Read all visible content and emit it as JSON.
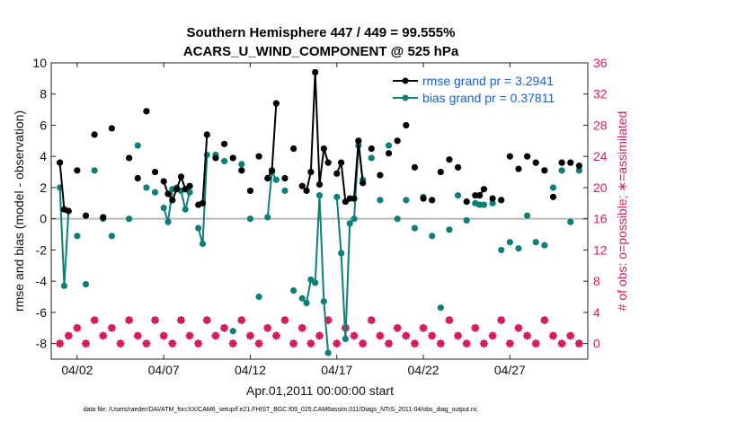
{
  "chart_data": {
    "type": "line",
    "title_line1": "Southern Hemisphere 447 / 449 = 99.555%",
    "title_line2": "ACARS_U_WIND_COMPONENT @ 525 hPa",
    "xlabel": "Apr.01,2011 00:00:00 start",
    "ylabel_left": "rmse and bias (model - observation)",
    "ylabel_right": "# of obs: o=possible; ∗=assimilated",
    "footer": "data file: /Users/raeder/DAI/ATM_forcXX/CAM6_setup/f.e21.FHIST_BGC.f09_025.CAM6assim.011/Diags_NTrS_2011-04/obs_diag_output.nc",
    "ylim_left": [
      -9,
      10
    ],
    "ylim_right": [
      -2,
      36
    ],
    "xlim": [
      0.5,
      31.5
    ],
    "left_ticks": [
      "10",
      "8",
      "6",
      "4",
      "2",
      "0",
      "-2",
      "-4",
      "-6",
      "-8"
    ],
    "right_ticks": [
      "36",
      "32",
      "28",
      "24",
      "20",
      "16",
      "12",
      "8",
      "4",
      "0"
    ],
    "x_ticks": [
      "04/02",
      "04/07",
      "04/12",
      "04/17",
      "04/22",
      "04/27"
    ],
    "x_tick_values": [
      2,
      7,
      12,
      17,
      22,
      27
    ],
    "grid": false,
    "legend_position": "top-right",
    "colors": {
      "rmse": "#000000",
      "bias": "#0d7f7a",
      "obs": "#d81b5f",
      "zero_line": "#b8b8b8",
      "legend_text": "#1560d8"
    },
    "series": [
      {
        "name": "rmse grand pr = 3.2941",
        "x": [
          1.0,
          1.25,
          1.5,
          2.0,
          2.5,
          3.0,
          3.5,
          4.0,
          5.0,
          5.5,
          6.0,
          6.5,
          7.0,
          7.25,
          7.5,
          7.75,
          8.0,
          8.25,
          8.5,
          9.0,
          9.25,
          9.5,
          10.0,
          10.5,
          11.0,
          11.5,
          12.0,
          12.5,
          13.0,
          13.25,
          13.5,
          14.0,
          14.5,
          15.0,
          15.25,
          15.5,
          15.75,
          16.0,
          16.25,
          16.5,
          17.0,
          17.25,
          17.5,
          17.75,
          18.0,
          18.25,
          18.5,
          19.0,
          19.5,
          20.0,
          20.5,
          21.0,
          21.5,
          22.0,
          22.5,
          23.0,
          23.5,
          24.0,
          24.5,
          25.0,
          25.25,
          25.5,
          26.0,
          26.5,
          27.0,
          27.5,
          28.0,
          28.5,
          29.0,
          29.5,
          30.0,
          30.5,
          31.0
        ],
        "y": [
          3.6,
          0.6,
          0.5,
          3.1,
          0.2,
          5.4,
          0.1,
          5.8,
          3.9,
          2.6,
          6.9,
          3.0,
          2.4,
          1.6,
          1.2,
          1.9,
          2.7,
          1.9,
          2.1,
          0.9,
          1.0,
          5.4,
          3.9,
          4.8,
          3.9,
          3.1,
          1.8,
          4.0,
          2.6,
          3.1,
          7.4,
          2.6,
          4.5,
          2.1,
          1.8,
          3.0,
          9.4,
          2.2,
          4.5,
          3.6,
          2.9,
          3.6,
          1.1,
          1.3,
          1.3,
          5.0,
          2.3,
          4.5,
          2.8,
          4.2,
          5.0,
          6.0,
          3.3,
          1.3,
          1.2,
          3.0,
          3.8,
          3.3,
          1.1,
          1.5,
          1.5,
          1.9,
          1.3,
          1.2,
          4.0,
          3.2,
          4.0,
          3.6,
          3.1,
          1.4,
          3.6,
          3.6,
          3.4
        ],
        "marker": "filled-circle"
      },
      {
        "name": "bias grand pr = 0.37811",
        "x": [
          1.0,
          1.25,
          1.5,
          2.0,
          2.5,
          3.0,
          3.5,
          4.0,
          5.0,
          5.5,
          6.0,
          6.5,
          7.0,
          7.25,
          7.5,
          7.75,
          8.0,
          8.25,
          8.5,
          9.0,
          9.25,
          9.5,
          10.0,
          10.5,
          11.0,
          11.5,
          12.0,
          12.5,
          13.0,
          13.25,
          13.5,
          14.0,
          14.5,
          15.0,
          15.25,
          15.5,
          15.75,
          16.0,
          16.25,
          16.5,
          17.0,
          17.25,
          17.5,
          17.75,
          18.0,
          18.25,
          18.5,
          19.0,
          19.5,
          20.0,
          20.5,
          21.0,
          21.5,
          22.0,
          22.5,
          23.0,
          23.5,
          24.0,
          24.5,
          25.0,
          25.25,
          25.5,
          26.0,
          26.5,
          27.0,
          27.5,
          28.0,
          28.5,
          29.0,
          29.5,
          30.0,
          30.5,
          31.0
        ],
        "y": [
          2.0,
          -4.3,
          0.5,
          -1.1,
          -4.2,
          3.1,
          0.0,
          -1.1,
          0.0,
          4.7,
          2.0,
          1.7,
          0.7,
          -0.2,
          1.9,
          2.0,
          1.8,
          0.6,
          1.7,
          -0.6,
          -1.6,
          4.1,
          4.1,
          3.7,
          -7.2,
          3.5,
          0.0,
          -5.0,
          0.1,
          3.0,
          2.5,
          1.8,
          -4.6,
          -5.1,
          -5.4,
          -3.9,
          -4.1,
          1.5,
          -5.3,
          -8.6,
          1.4,
          -2.2,
          -7.7,
          -0.3,
          0.0,
          4.7,
          2.5,
          3.9,
          1.2,
          4.7,
          0.0,
          1.2,
          -0.6,
          1.4,
          -1.1,
          -5.7,
          -0.7,
          1.5,
          -0.1,
          1.0,
          0.9,
          0.9,
          1.0,
          -2.0,
          -1.5,
          -1.9,
          0.2,
          -1.5,
          -1.7,
          2.0,
          3.1,
          -0.2,
          3.1
        ],
        "marker": "filled-circle"
      },
      {
        "name": "observations possible",
        "x": [
          1.0,
          1.5,
          2.0,
          2.5,
          3.0,
          3.5,
          4.0,
          4.5,
          5.0,
          5.5,
          6.0,
          6.5,
          7.0,
          7.5,
          8.0,
          8.5,
          9.0,
          9.5,
          10.0,
          10.5,
          11.0,
          11.5,
          12.0,
          12.5,
          13.0,
          13.5,
          14.0,
          14.5,
          15.0,
          15.5,
          16.0,
          16.5,
          17.0,
          17.5,
          18.0,
          18.5,
          19.0,
          19.5,
          20.0,
          20.5,
          21.0,
          21.5,
          22.0,
          22.5,
          23.0,
          23.5,
          24.0,
          24.5,
          25.0,
          25.5,
          26.0,
          26.5,
          27.0,
          27.5,
          28.0,
          28.5,
          29.0,
          29.5,
          30.0,
          30.5,
          31.0
        ],
        "y": [
          0,
          1,
          2,
          0,
          3,
          1,
          2,
          0,
          3,
          1,
          0,
          3,
          1,
          0,
          3,
          1,
          0,
          3,
          1,
          2,
          0,
          3,
          1,
          0,
          2,
          1,
          3,
          0,
          2,
          0,
          1,
          3,
          0,
          2,
          1,
          0,
          3,
          1,
          0,
          2,
          1,
          0,
          2,
          1,
          0,
          3,
          1,
          0,
          2,
          0,
          1,
          3,
          0,
          2,
          1,
          0,
          3,
          1,
          0,
          1,
          0
        ]
      },
      {
        "name": "observations assimilated",
        "x": [
          1.0,
          1.5,
          2.0,
          2.5,
          3.0,
          3.5,
          4.0,
          4.5,
          5.0,
          5.5,
          6.0,
          6.5,
          7.0,
          7.5,
          8.0,
          8.5,
          9.0,
          9.5,
          10.0,
          10.5,
          11.0,
          11.5,
          12.0,
          12.5,
          13.0,
          13.5,
          14.0,
          14.5,
          15.0,
          15.5,
          16.0,
          16.5,
          17.0,
          17.5,
          18.0,
          18.5,
          19.0,
          19.5,
          20.0,
          20.5,
          21.0,
          21.5,
          22.0,
          22.5,
          23.0,
          23.5,
          24.0,
          24.5,
          25.0,
          25.5,
          26.0,
          26.5,
          27.0,
          27.5,
          28.0,
          28.5,
          29.0,
          29.5,
          30.0,
          30.5,
          31.0
        ],
        "y": [
          0,
          1,
          2,
          0,
          3,
          1,
          2,
          0,
          3,
          1,
          0,
          3,
          1,
          0,
          3,
          1,
          0,
          3,
          1,
          2,
          0,
          3,
          1,
          0,
          2,
          1,
          3,
          0,
          2,
          0,
          1,
          3,
          0,
          2,
          1,
          0,
          3,
          1,
          0,
          2,
          1,
          0,
          2,
          1,
          0,
          3,
          1,
          0,
          2,
          0,
          1,
          3,
          0,
          2,
          1,
          0,
          3,
          1,
          0,
          1,
          0
        ]
      }
    ]
  }
}
